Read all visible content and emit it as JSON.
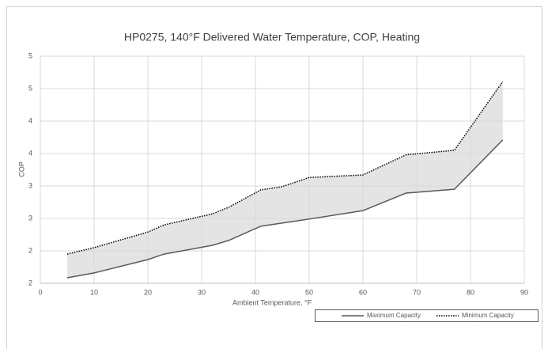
{
  "chart_data": {
    "type": "line",
    "title": "HP0275, 140°F Delivered Water Temperature, COP, Heating",
    "x_label": "Ambient Temperature, °F",
    "y_label": "COP",
    "xlim": [
      0,
      90
    ],
    "xticks": [
      0,
      10,
      20,
      30,
      40,
      50,
      60,
      70,
      80,
      90
    ],
    "ylim": [
      1.5,
      5
    ],
    "yticks": [
      {
        "value": 1.5,
        "label": "2"
      },
      {
        "value": 2,
        "label": "2"
      },
      {
        "value": 2.5,
        "label": "3"
      },
      {
        "value": 3,
        "label": "3"
      },
      {
        "value": 3.5,
        "label": "4"
      },
      {
        "value": 4,
        "label": "4"
      },
      {
        "value": 4.5,
        "label": "5"
      },
      {
        "value": 5,
        "label": "5"
      }
    ],
    "grid": true,
    "fill_between": true,
    "fill_color": "#d9d9d9",
    "series": [
      {
        "name": "Maximum Capacity",
        "color": "#595959",
        "dash": "solid",
        "x": [
          5,
          10,
          20,
          23,
          32,
          35,
          41,
          50,
          60,
          68,
          77,
          86
        ],
        "values": [
          1.585,
          1.66,
          1.866,
          1.95,
          2.085,
          2.16,
          2.38,
          2.49,
          2.62,
          2.89,
          2.95,
          3.71
        ]
      },
      {
        "name": "Minimum Capacity",
        "color": "#000000",
        "dash": "dotted",
        "x": [
          5,
          10,
          20,
          23,
          32,
          35,
          41,
          45,
          50,
          60,
          68,
          77,
          86
        ],
        "values": [
          1.95,
          2.05,
          2.29,
          2.4,
          2.57,
          2.67,
          2.94,
          2.99,
          3.13,
          3.17,
          3.48,
          3.55,
          4.61
        ]
      }
    ]
  }
}
